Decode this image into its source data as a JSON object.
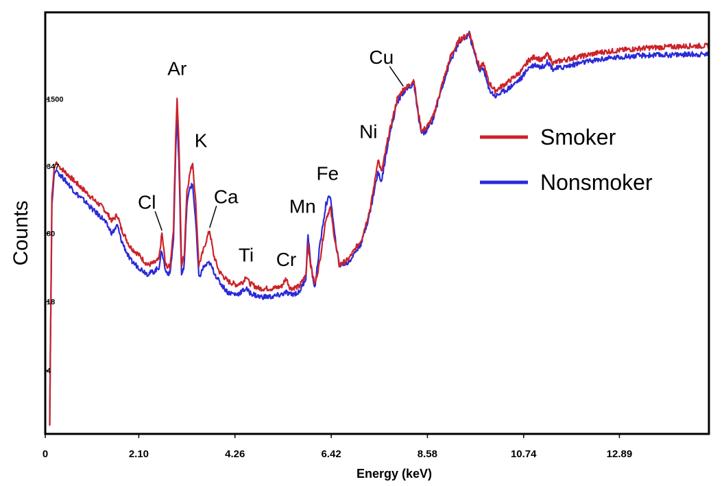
{
  "chart_data": {
    "type": "line",
    "title": "",
    "xlabel": "Energy (keV)",
    "ylabel": "Counts",
    "xlim": [
      0,
      14.9
    ],
    "ylim": [
      1,
      10000
    ],
    "y_scale": "log",
    "grid": false,
    "legend_position": "right",
    "x_ticks": [
      0,
      2.1,
      4.26,
      6.42,
      8.58,
      10.74,
      12.89
    ],
    "x_tick_labels": [
      "0",
      "2.10",
      "4.26",
      "6.42",
      "8.58",
      "10.74",
      "12.89"
    ],
    "y_ticks": [
      4,
      18,
      80,
      347,
      1500
    ],
    "y_tick_labels": [
      "4",
      "18",
      "80",
      "347",
      "1500"
    ],
    "peak_labels": [
      {
        "text": "Cl",
        "x": 2.62,
        "y": 80
      },
      {
        "text": "Ar",
        "x": 2.96,
        "y": 1500
      },
      {
        "text": "K",
        "x": 3.31,
        "y": 380
      },
      {
        "text": "Ca",
        "x": 3.69,
        "y": 85
      },
      {
        "text": "Ti",
        "x": 4.51,
        "y": 32
      },
      {
        "text": "Cr",
        "x": 5.41,
        "y": 30
      },
      {
        "text": "Mn",
        "x": 5.9,
        "y": 80
      },
      {
        "text": "Fe",
        "x": 6.4,
        "y": 190
      },
      {
        "text": "Ni",
        "x": 7.47,
        "y": 410
      },
      {
        "text": "Cu",
        "x": 8.04,
        "y": 1870
      }
    ],
    "series": [
      {
        "name": "Smoker",
        "color": "#cc2229",
        "x": [
          0.1,
          0.12,
          0.15,
          0.2,
          0.25,
          0.3,
          0.5,
          0.7,
          0.9,
          1.1,
          1.3,
          1.5,
          1.62,
          1.7,
          1.9,
          2.1,
          2.3,
          2.45,
          2.55,
          2.62,
          2.7,
          2.8,
          2.88,
          2.93,
          2.96,
          3.0,
          3.06,
          3.12,
          3.18,
          3.25,
          3.31,
          3.38,
          3.45,
          3.55,
          3.62,
          3.69,
          3.78,
          3.9,
          4.1,
          4.3,
          4.45,
          4.51,
          4.58,
          4.8,
          5.1,
          5.3,
          5.41,
          5.5,
          5.7,
          5.85,
          5.9,
          5.96,
          6.05,
          6.15,
          6.3,
          6.4,
          6.5,
          6.6,
          6.8,
          7.1,
          7.3,
          7.4,
          7.47,
          7.55,
          7.7,
          7.9,
          8.04,
          8.15,
          8.28,
          8.35,
          8.45,
          8.55,
          8.7,
          8.9,
          9.1,
          9.3,
          9.45,
          9.52,
          9.6,
          9.75,
          9.85,
          9.95,
          10.1,
          10.4,
          10.7,
          10.85,
          11.0,
          11.15,
          11.28,
          11.4,
          11.6,
          12.0,
          12.5,
          13.0,
          13.5,
          14.0,
          14.5,
          14.9
        ],
        "values": [
          1.2,
          10,
          180,
          330,
          380,
          350,
          290,
          240,
          200,
          165,
          140,
          105,
          120,
          90,
          60,
          50,
          40,
          42,
          45,
          80,
          40,
          38,
          90,
          700,
          1500,
          600,
          40,
          50,
          200,
          300,
          380,
          150,
          40,
          55,
          70,
          85,
          50,
          35,
          28,
          26,
          28,
          32,
          27,
          24,
          24,
          25,
          30,
          24,
          25,
          32,
          65,
          40,
          26,
          40,
          110,
          140,
          70,
          40,
          45,
          70,
          140,
          250,
          410,
          300,
          650,
          1500,
          1870,
          2000,
          2300,
          1300,
          750,
          800,
          1000,
          2000,
          3800,
          5500,
          6000,
          6500,
          5000,
          3000,
          3200,
          2200,
          1800,
          2200,
          2800,
          3500,
          3800,
          3500,
          4000,
          3300,
          3500,
          3800,
          4200,
          4400,
          4600,
          4700,
          4800,
          4800
        ]
      },
      {
        "name": "Nonsmoker",
        "color": "#2a2ad8",
        "x": [
          0.1,
          0.12,
          0.15,
          0.2,
          0.25,
          0.3,
          0.5,
          0.7,
          0.9,
          1.1,
          1.3,
          1.5,
          1.62,
          1.7,
          1.9,
          2.1,
          2.3,
          2.45,
          2.55,
          2.62,
          2.7,
          2.8,
          2.88,
          2.93,
          2.96,
          3.0,
          3.06,
          3.12,
          3.18,
          3.25,
          3.31,
          3.38,
          3.45,
          3.55,
          3.62,
          3.69,
          3.78,
          3.9,
          4.1,
          4.3,
          4.45,
          4.51,
          4.58,
          4.8,
          5.1,
          5.3,
          5.41,
          5.5,
          5.7,
          5.85,
          5.9,
          5.96,
          6.05,
          6.15,
          6.3,
          6.4,
          6.5,
          6.6,
          6.8,
          7.1,
          7.3,
          7.4,
          7.47,
          7.55,
          7.7,
          7.9,
          8.04,
          8.15,
          8.28,
          8.35,
          8.45,
          8.55,
          8.7,
          8.9,
          9.1,
          9.3,
          9.45,
          9.52,
          9.6,
          9.75,
          9.85,
          9.95,
          10.1,
          10.4,
          10.7,
          10.85,
          11.0,
          11.15,
          11.28,
          11.4,
          11.6,
          12.0,
          12.5,
          13.0,
          13.5,
          14.0,
          14.5,
          14.9
        ],
        "values": [
          1.2,
          10,
          150,
          290,
          320,
          300,
          240,
          190,
          160,
          130,
          110,
          80,
          95,
          70,
          45,
          38,
          33,
          35,
          38,
          55,
          35,
          33,
          70,
          500,
          1000,
          380,
          33,
          40,
          150,
          220,
          230,
          100,
          30,
          38,
          40,
          42,
          35,
          28,
          22,
          21,
          23,
          24,
          22,
          20,
          20,
          21,
          22,
          21,
          22,
          30,
          80,
          40,
          24,
          55,
          150,
          185,
          75,
          40,
          42,
          65,
          130,
          220,
          300,
          250,
          600,
          1400,
          1750,
          1900,
          2100,
          1200,
          700,
          750,
          950,
          1900,
          3500,
          5200,
          5800,
          6300,
          4600,
          2800,
          2900,
          1900,
          1600,
          1900,
          2400,
          3000,
          3200,
          3000,
          3400,
          2900,
          3000,
          3300,
          3600,
          3800,
          3900,
          3950,
          4000,
          4000
        ]
      }
    ]
  }
}
